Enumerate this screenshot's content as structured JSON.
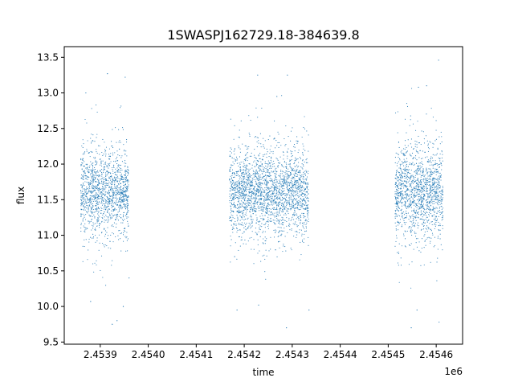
{
  "chart_data": {
    "type": "scatter",
    "title": "1SWASPJ162729.18-384639.8",
    "xlabel": "time",
    "ylabel": "flux",
    "x_offset_label": "1e6",
    "xlim": [
      2453825,
      2454655
    ],
    "ylim": [
      9.47,
      13.65
    ],
    "x_ticks": [
      2453900,
      2454000,
      2454100,
      2454200,
      2454300,
      2454400,
      2454500,
      2454600
    ],
    "x_tick_labels": [
      "2.4539",
      "2.4540",
      "2.4541",
      "2.4542",
      "2.4543",
      "2.4544",
      "2.4545",
      "2.4546"
    ],
    "y_ticks": [
      9.5,
      10.0,
      10.5,
      11.0,
      11.5,
      12.0,
      12.5,
      13.0,
      13.5
    ],
    "y_tick_labels": [
      "9.5",
      "10.0",
      "10.5",
      "11.0",
      "11.5",
      "12.0",
      "12.5",
      "13.0",
      "13.5"
    ],
    "grid": false,
    "marker_color": "#1f77b4",
    "seasons": [
      {
        "x_range": [
          2453860,
          2453960
        ],
        "flux_center": 11.6,
        "flux_spread": 0.35
      },
      {
        "x_range": [
          2454170,
          2454335
        ],
        "flux_center": 11.6,
        "flux_spread": 0.35
      },
      {
        "x_range": [
          2454515,
          2454615
        ],
        "flux_center": 11.6,
        "flux_spread": 0.38
      }
    ],
    "outliers": [
      {
        "x": 2453870,
        "y": 13.0
      },
      {
        "x": 2453915,
        "y": 13.27
      },
      {
        "x": 2453952,
        "y": 13.22
      },
      {
        "x": 2453880,
        "y": 10.07
      },
      {
        "x": 2453925,
        "y": 9.75
      },
      {
        "x": 2453935,
        "y": 9.8
      },
      {
        "x": 2453948,
        "y": 10.0
      },
      {
        "x": 2453960,
        "y": 10.4
      },
      {
        "x": 2454228,
        "y": 13.25
      },
      {
        "x": 2454290,
        "y": 13.25
      },
      {
        "x": 2454268,
        "y": 12.95
      },
      {
        "x": 2454185,
        "y": 9.95
      },
      {
        "x": 2454230,
        "y": 10.02
      },
      {
        "x": 2454288,
        "y": 9.7
      },
      {
        "x": 2454335,
        "y": 9.95
      },
      {
        "x": 2454180,
        "y": 10.7
      },
      {
        "x": 2454605,
        "y": 13.46
      },
      {
        "x": 2454580,
        "y": 13.1
      },
      {
        "x": 2454563,
        "y": 13.08
      },
      {
        "x": 2454560,
        "y": 9.95
      },
      {
        "x": 2454548,
        "y": 9.7
      },
      {
        "x": 2454606,
        "y": 9.78
      }
    ]
  }
}
